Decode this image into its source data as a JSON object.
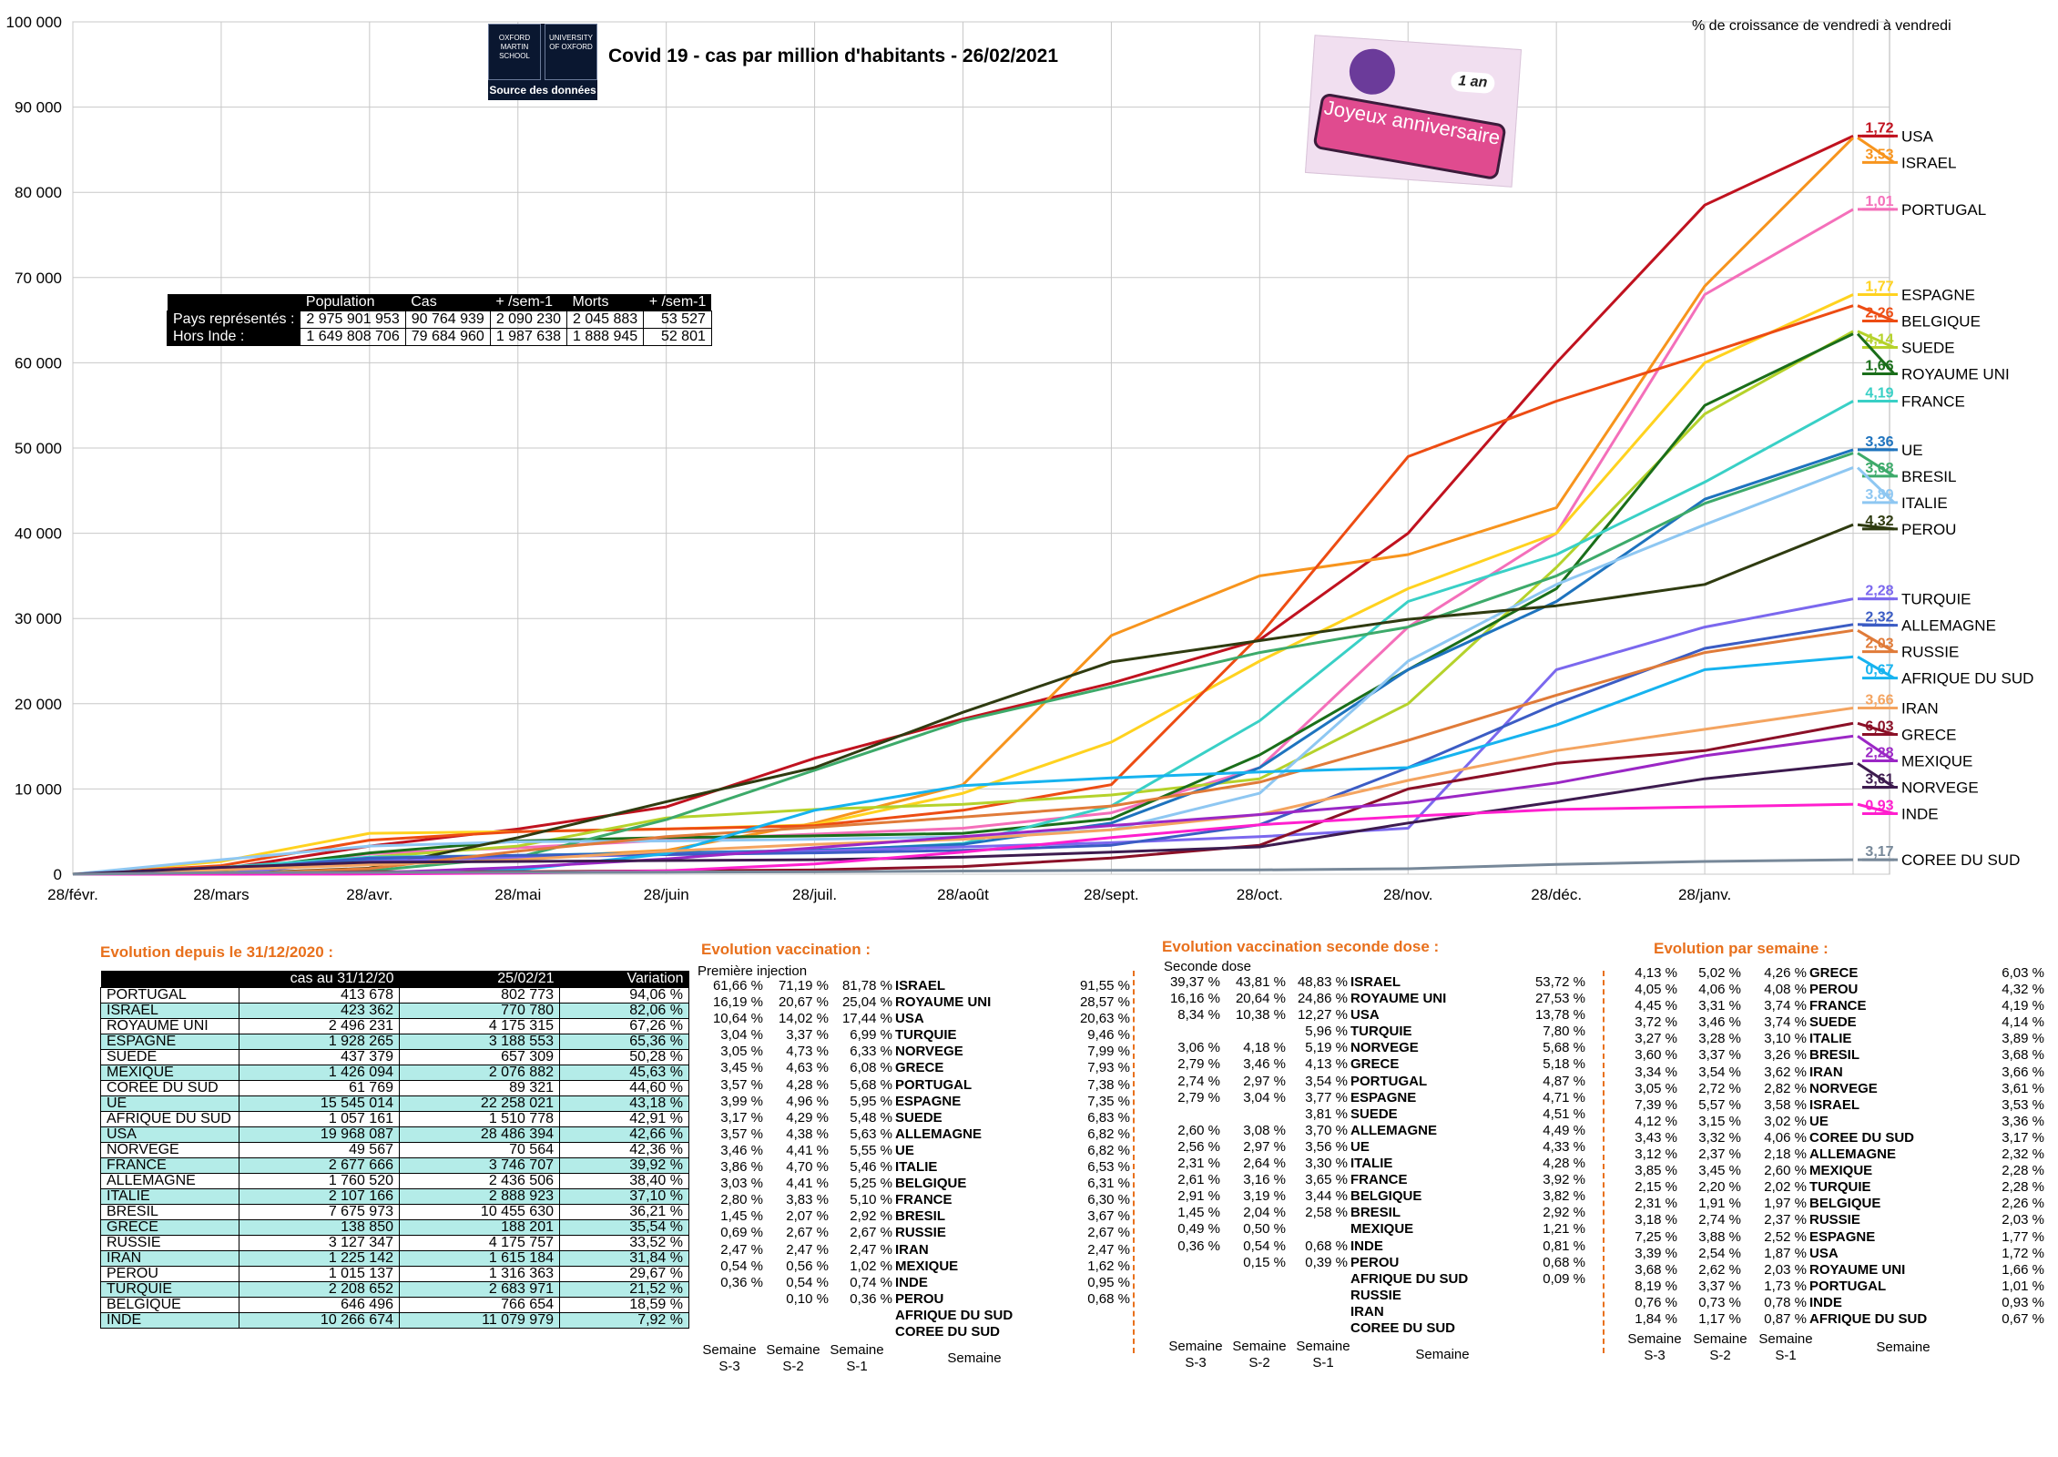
{
  "header": {
    "title": "Covid 19 - cas par million d'habitants - 26/02/2021",
    "growth_note": "% de croissance de vendredi à vendredi",
    "logo_left": "OXFORD MARTIN SCHOOL",
    "logo_right": "UNIVERSITY OF OXFORD",
    "logo_source": "Source des données",
    "anniv_top": "1 an",
    "anniv_banner": "Joyeux anniversaire"
  },
  "summary": {
    "headers": [
      "",
      "Population",
      "Cas",
      "+ /sem-1",
      "Morts",
      "+ /sem-1"
    ],
    "rows": [
      {
        "label": "Pays représentés :",
        "population": "2 975 901 953",
        "cas": "90 764 939",
        "sem_cas": "2 090 230",
        "morts": "2 045 883",
        "sem_morts": "53 527"
      },
      {
        "label": "Hors Inde :",
        "population": "1 649 808 706",
        "cas": "79 684 960",
        "sem_cas": "1 987 638",
        "morts": "1 888 945",
        "sem_morts": "52 801"
      }
    ]
  },
  "chart_data": {
    "type": "line",
    "title": "Covid 19 - cas par million d'habitants - 26/02/2021",
    "xlabel": "",
    "ylabel": "",
    "ylim": [
      0,
      100000
    ],
    "y_ticks": [
      "0",
      "10 000",
      "20 000",
      "30 000",
      "40 000",
      "50 000",
      "60 000",
      "70 000",
      "80 000",
      "90 000",
      "100 000"
    ],
    "categories": [
      "28/févr.",
      "28/mars",
      "28/avr.",
      "28/mai",
      "28/juin",
      "28/juil.",
      "28/août",
      "28/sept.",
      "28/oct.",
      "28/nov.",
      "28/déc.",
      "28/janv.",
      ""
    ],
    "grid": true,
    "legend": "right-end labels",
    "series": [
      {
        "name": "USA",
        "growth": "1,72",
        "color": "#c0121f",
        "values": [
          0,
          600,
          3300,
          5300,
          7900,
          13600,
          18200,
          22400,
          27500,
          40000,
          60000,
          78500,
          86600
        ]
      },
      {
        "name": "ISRAEL",
        "growth": "3,53",
        "color": "#f7941d",
        "values": [
          0,
          500,
          1800,
          1900,
          2800,
          6000,
          10500,
          28000,
          35000,
          37500,
          43000,
          69000,
          86400
        ]
      },
      {
        "name": "PORTUGAL",
        "growth": "1,01",
        "color": "#f46fba",
        "values": [
          0,
          500,
          2400,
          3100,
          4000,
          4700,
          5400,
          7200,
          12500,
          29000,
          40000,
          68000,
          78000
        ]
      },
      {
        "name": "ESPAGNE",
        "growth": "1,77",
        "color": "#ffd21f",
        "values": [
          0,
          1500,
          4800,
          5000,
          5300,
          5800,
          9500,
          15500,
          25000,
          33500,
          40000,
          60000,
          68000
        ]
      },
      {
        "name": "BELGIQUE",
        "growth": "2,26",
        "color": "#ed4c13",
        "values": [
          0,
          1000,
          4000,
          5000,
          5300,
          5700,
          7500,
          10500,
          28000,
          49000,
          55500,
          61000,
          66700
        ]
      },
      {
        "name": "SUEDE",
        "growth": "4,14",
        "color": "#b5d22b",
        "values": [
          0,
          300,
          2000,
          3300,
          6600,
          7600,
          8200,
          9300,
          11200,
          20000,
          36000,
          54000,
          63700
        ]
      },
      {
        "name": "ROYAUME UNI",
        "growth": "1,66",
        "color": "#1a6e1a",
        "values": [
          0,
          400,
          2500,
          3900,
          4300,
          4500,
          4800,
          6500,
          14000,
          24000,
          33500,
          55000,
          63400
        ]
      },
      {
        "name": "FRANCE",
        "growth": "4,19",
        "color": "#39d0c6",
        "values": [
          0,
          800,
          2000,
          2200,
          2500,
          2700,
          3600,
          8000,
          18000,
          32000,
          37500,
          46000,
          55500
        ]
      },
      {
        "name": "UE",
        "growth": "3,36",
        "color": "#1e73be",
        "values": [
          0,
          500,
          1700,
          2200,
          2500,
          2800,
          3500,
          6000,
          12500,
          24000,
          32000,
          44000,
          49800
        ]
      },
      {
        "name": "BRESIL",
        "growth": "3,68",
        "color": "#3daa6a",
        "values": [
          0,
          50,
          400,
          2000,
          6400,
          12200,
          18000,
          22000,
          26000,
          29000,
          35000,
          43500,
          49400
        ]
      },
      {
        "name": "ITALIE",
        "growth": "3,89",
        "color": "#8ec7f2",
        "values": [
          0,
          1700,
          3300,
          3800,
          3900,
          4100,
          4400,
          5200,
          9500,
          25000,
          34000,
          41000,
          47700
        ]
      },
      {
        "name": "PEROU",
        "growth": "4,32",
        "color": "#2f3b10",
        "values": [
          0,
          50,
          700,
          4300,
          8500,
          12500,
          19000,
          24900,
          27400,
          29900,
          31500,
          34000,
          41000
        ]
      },
      {
        "name": "TURQUIE",
        "growth": "2,28",
        "color": "#7b68ee",
        "values": [
          0,
          100,
          1500,
          2000,
          2300,
          2700,
          3200,
          3700,
          4400,
          5400,
          24000,
          29000,
          32300
        ]
      },
      {
        "name": "ALLEMAGNE",
        "growth": "2,32",
        "color": "#3b5cc4",
        "values": [
          0,
          500,
          1900,
          2200,
          2300,
          2500,
          2800,
          3400,
          5800,
          12500,
          20000,
          26500,
          29300
        ]
      },
      {
        "name": "RUSSIE",
        "growth": "2,03",
        "color": "#e07b39",
        "values": [
          0,
          10,
          650,
          2700,
          4400,
          5500,
          6700,
          8000,
          10800,
          15700,
          21000,
          26000,
          28600
        ]
      },
      {
        "name": "AFRIQUE DU SUD",
        "growth": "0,67",
        "color": "#16b3ef",
        "values": [
          0,
          20,
          100,
          500,
          2400,
          7500,
          10400,
          11300,
          12000,
          12500,
          17500,
          24000,
          25500
        ]
      },
      {
        "name": "IRAN",
        "growth": "3,66",
        "color": "#f4a460",
        "values": [
          0,
          500,
          1100,
          1700,
          2700,
          3500,
          4100,
          5200,
          7000,
          11000,
          14500,
          17000,
          19500
        ]
      },
      {
        "name": "GRECE",
        "growth": "6,03",
        "color": "#8b1027",
        "values": [
          0,
          50,
          300,
          300,
          400,
          500,
          900,
          1900,
          3400,
          10000,
          13000,
          14500,
          17700
        ]
      },
      {
        "name": "MEXIQUE",
        "growth": "2,28",
        "color": "#9b27c5",
        "values": [
          0,
          10,
          150,
          800,
          1800,
          3100,
          4400,
          5700,
          7000,
          8400,
          10700,
          13900,
          16200
        ]
      },
      {
        "name": "NORVEGE",
        "growth": "3,61",
        "color": "#3d1b4f",
        "values": [
          0,
          800,
          1400,
          1500,
          1600,
          1700,
          2000,
          2600,
          3200,
          6000,
          8500,
          11200,
          13000
        ]
      },
      {
        "name": "INDE",
        "growth": "0,93",
        "color": "#ff1fce",
        "values": [
          0,
          0,
          20,
          130,
          400,
          1200,
          2600,
          4300,
          5800,
          6800,
          7600,
          7900,
          8200
        ]
      },
      {
        "name": "COREE DU SUD",
        "growth": "3,17",
        "color": "#778899",
        "values": [
          0,
          180,
          210,
          220,
          250,
          280,
          370,
          460,
          500,
          640,
          1150,
          1500,
          1700
        ]
      }
    ]
  },
  "evolution": {
    "title": "Evolution depuis le 31/12/2020 :",
    "headers": [
      "",
      "cas au 31/12/20",
      "25/02/21",
      "Variation"
    ],
    "rows": [
      [
        "PORTUGAL",
        "413 678",
        "802 773",
        "94,06 %"
      ],
      [
        "ISRAEL",
        "423 362",
        "770 780",
        "82,06 %"
      ],
      [
        "ROYAUME UNI",
        "2 496 231",
        "4 175 315",
        "67,26 %"
      ],
      [
        "ESPAGNE",
        "1 928 265",
        "3 188 553",
        "65,36 %"
      ],
      [
        "SUEDE",
        "437 379",
        "657 309",
        "50,28 %"
      ],
      [
        "MEXIQUE",
        "1 426 094",
        "2 076 882",
        "45,63 %"
      ],
      [
        "COREE DU SUD",
        "61 769",
        "89 321",
        "44,60 %"
      ],
      [
        "UE",
        "15 545 014",
        "22 258 021",
        "43,18 %"
      ],
      [
        "AFRIQUE DU SUD",
        "1 057 161",
        "1 510 778",
        "42,91 %"
      ],
      [
        "USA",
        "19 968 087",
        "28 486 394",
        "42,66 %"
      ],
      [
        "NORVEGE",
        "49 567",
        "70 564",
        "42,36 %"
      ],
      [
        "FRANCE",
        "2 677 666",
        "3 746 707",
        "39,92 %"
      ],
      [
        "ALLEMAGNE",
        "1 760 520",
        "2 436 506",
        "38,40 %"
      ],
      [
        "ITALIE",
        "2 107 166",
        "2 888 923",
        "37,10 %"
      ],
      [
        "BRESIL",
        "7 675 973",
        "10 455 630",
        "36,21 %"
      ],
      [
        "GRECE",
        "138 850",
        "188 201",
        "35,54 %"
      ],
      [
        "RUSSIE",
        "3 127 347",
        "4 175 757",
        "33,52 %"
      ],
      [
        "IRAN",
        "1 225 142",
        "1 615 184",
        "31,84 %"
      ],
      [
        "PEROU",
        "1 015 137",
        "1 316 363",
        "29,67 %"
      ],
      [
        "TURQUIE",
        "2 208 652",
        "2 683 971",
        "21,52 %"
      ],
      [
        "BELGIQUE",
        "646 496",
        "766 654",
        "18,59 %"
      ],
      [
        "INDE",
        "10 266 674",
        "11 079 979",
        "7,92 %"
      ]
    ]
  },
  "vaccination": {
    "title": "Evolution vaccination :",
    "subtitle": "Première injection",
    "footer": [
      "Semaine S-3",
      "Semaine S-2",
      "Semaine S-1",
      "Semaine"
    ],
    "rows": [
      [
        "61,66 %",
        "71,19 %",
        "81,78 %",
        "ISRAEL",
        "91,55 %"
      ],
      [
        "16,19 %",
        "20,67 %",
        "25,04 %",
        "ROYAUME UNI",
        "28,57 %"
      ],
      [
        "10,64 %",
        "14,02 %",
        "17,44 %",
        "USA",
        "20,63 %"
      ],
      [
        "3,04 %",
        "3,37 %",
        "6,99 %",
        "TURQUIE",
        "9,46 %"
      ],
      [
        "3,05 %",
        "4,73 %",
        "6,33 %",
        "NORVEGE",
        "7,99 %"
      ],
      [
        "3,45 %",
        "4,63 %",
        "6,08 %",
        "GRECE",
        "7,93 %"
      ],
      [
        "3,57 %",
        "4,28 %",
        "5,68 %",
        "PORTUGAL",
        "7,38 %"
      ],
      [
        "3,99 %",
        "4,96 %",
        "5,95 %",
        "ESPAGNE",
        "7,35 %"
      ],
      [
        "3,17 %",
        "4,29 %",
        "5,48 %",
        "SUEDE",
        "6,83 %"
      ],
      [
        "3,57 %",
        "4,38 %",
        "5,63 %",
        "ALLEMAGNE",
        "6,82 %"
      ],
      [
        "3,46 %",
        "4,41 %",
        "5,55 %",
        "UE",
        "6,82 %"
      ],
      [
        "3,86 %",
        "4,70 %",
        "5,46 %",
        "ITALIE",
        "6,53 %"
      ],
      [
        "3,03 %",
        "4,41 %",
        "5,25 %",
        "BELGIQUE",
        "6,31 %"
      ],
      [
        "2,80 %",
        "3,83 %",
        "5,10 %",
        "FRANCE",
        "6,30 %"
      ],
      [
        "1,45 %",
        "2,07 %",
        "2,92 %",
        "BRESIL",
        "3,67 %"
      ],
      [
        "0,69 %",
        "2,67 %",
        "2,67 %",
        "RUSSIE",
        "2,67 %"
      ],
      [
        "2,47 %",
        "2,47 %",
        "2,47 %",
        "IRAN",
        "2,47 %"
      ],
      [
        "0,54 %",
        "0,56 %",
        "1,02 %",
        "MEXIQUE",
        "1,62 %"
      ],
      [
        "0,36 %",
        "0,54 %",
        "0,74 %",
        "INDE",
        "0,95 %"
      ],
      [
        "",
        "0,10 %",
        "0,36 %",
        "PEROU",
        "0,68 %"
      ],
      [
        "",
        "",
        "",
        "AFRIQUE DU SUD",
        ""
      ],
      [
        "",
        "",
        "",
        "COREE DU SUD",
        ""
      ]
    ]
  },
  "vaccination2": {
    "title": "Evolution vaccination seconde dose :",
    "subtitle": "Seconde dose",
    "footer": [
      "Semaine S-3",
      "Semaine S-2",
      "Semaine S-1",
      "Semaine"
    ],
    "rows": [
      [
        "39,37 %",
        "43,81 %",
        "48,83 %",
        "ISRAEL",
        "53,72 %"
      ],
      [
        "16,16 %",
        "20,64 %",
        "24,86 %",
        "ROYAUME UNI",
        "27,53 %"
      ],
      [
        "8,34 %",
        "10,38 %",
        "12,27 %",
        "USA",
        "13,78 %"
      ],
      [
        "",
        "",
        "5,96 %",
        "TURQUIE",
        "7,80 %"
      ],
      [
        "3,06 %",
        "4,18 %",
        "5,19 %",
        "NORVEGE",
        "5,68 %"
      ],
      [
        "2,79 %",
        "3,46 %",
        "4,13 %",
        "GRECE",
        "5,18 %"
      ],
      [
        "2,74 %",
        "2,97 %",
        "3,54 %",
        "PORTUGAL",
        "4,87 %"
      ],
      [
        "2,79 %",
        "3,04 %",
        "3,77 %",
        "ESPAGNE",
        "4,71 %"
      ],
      [
        "",
        "",
        "3,81 %",
        "SUEDE",
        "4,51 %"
      ],
      [
        "2,60 %",
        "3,08 %",
        "3,70 %",
        "ALLEMAGNE",
        "4,49 %"
      ],
      [
        "2,56 %",
        "2,97 %",
        "3,56 %",
        "UE",
        "4,33 %"
      ],
      [
        "2,31 %",
        "2,64 %",
        "3,30 %",
        "ITALIE",
        "4,28 %"
      ],
      [
        "2,61 %",
        "3,16 %",
        "3,65 %",
        "FRANCE",
        "3,92 %"
      ],
      [
        "2,91 %",
        "3,19 %",
        "3,44 %",
        "BELGIQUE",
        "3,82 %"
      ],
      [
        "1,45 %",
        "2,04 %",
        "2,58 %",
        "BRESIL",
        "2,92 %"
      ],
      [
        "0,49 %",
        "0,50 %",
        "",
        "MEXIQUE",
        "1,21 %"
      ],
      [
        "0,36 %",
        "0,54 %",
        "0,68 %",
        "INDE",
        "0,81 %"
      ],
      [
        "",
        "0,15 %",
        "0,39 %",
        "PEROU",
        "0,68 %"
      ],
      [
        "",
        "",
        "",
        "AFRIQUE DU SUD",
        "0,09 %"
      ],
      [
        "",
        "",
        "",
        "RUSSIE",
        ""
      ],
      [
        "",
        "",
        "",
        "IRAN",
        ""
      ],
      [
        "",
        "",
        "",
        "COREE DU SUD",
        ""
      ]
    ]
  },
  "weekly": {
    "title": "Evolution par semaine :",
    "footer": [
      "Semaine S-3",
      "Semaine S-2",
      "Semaine S-1",
      "Semaine"
    ],
    "rows": [
      [
        "4,13 %",
        "5,02 %",
        "4,26 %",
        "GRECE",
        "6,03 %"
      ],
      [
        "4,05 %",
        "4,06 %",
        "4,08 %",
        "PEROU",
        "4,32 %"
      ],
      [
        "4,45 %",
        "3,31 %",
        "3,74 %",
        "FRANCE",
        "4,19 %"
      ],
      [
        "3,72 %",
        "3,46 %",
        "3,74 %",
        "SUEDE",
        "4,14 %"
      ],
      [
        "3,27 %",
        "3,28 %",
        "3,10 %",
        "ITALIE",
        "3,89 %"
      ],
      [
        "3,60 %",
        "3,37 %",
        "3,26 %",
        "BRESIL",
        "3,68 %"
      ],
      [
        "3,34 %",
        "3,54 %",
        "3,62 %",
        "IRAN",
        "3,66 %"
      ],
      [
        "3,05 %",
        "2,72 %",
        "2,82 %",
        "NORVEGE",
        "3,61 %"
      ],
      [
        "7,39 %",
        "5,57 %",
        "3,58 %",
        "ISRAEL",
        "3,53 %"
      ],
      [
        "4,12 %",
        "3,15 %",
        "3,02 %",
        "UE",
        "3,36 %"
      ],
      [
        "3,43 %",
        "3,32 %",
        "4,06 %",
        "COREE DU SUD",
        "3,17 %"
      ],
      [
        "3,12 %",
        "2,37 %",
        "2,18 %",
        "ALLEMAGNE",
        "2,32 %"
      ],
      [
        "3,85 %",
        "3,45 %",
        "2,60 %",
        "MEXIQUE",
        "2,28 %"
      ],
      [
        "2,15 %",
        "2,20 %",
        "2,02 %",
        "TURQUIE",
        "2,28 %"
      ],
      [
        "2,31 %",
        "1,91 %",
        "1,97 %",
        "BELGIQUE",
        "2,26 %"
      ],
      [
        "3,18 %",
        "2,74 %",
        "2,37 %",
        "RUSSIE",
        "2,03 %"
      ],
      [
        "7,25 %",
        "3,88 %",
        "2,52 %",
        "ESPAGNE",
        "1,77 %"
      ],
      [
        "3,39 %",
        "2,54 %",
        "1,87 %",
        "USA",
        "1,72 %"
      ],
      [
        "3,68 %",
        "2,62 %",
        "2,03 %",
        "ROYAUME UNI",
        "1,66 %"
      ],
      [
        "8,19 %",
        "3,37 %",
        "1,73 %",
        "PORTUGAL",
        "1,01 %"
      ],
      [
        "0,76 %",
        "0,73 %",
        "0,78 %",
        "INDE",
        "0,93 %"
      ],
      [
        "1,84 %",
        "1,17 %",
        "0,87 %",
        "AFRIQUE DU SUD",
        "0,67 %"
      ]
    ]
  }
}
